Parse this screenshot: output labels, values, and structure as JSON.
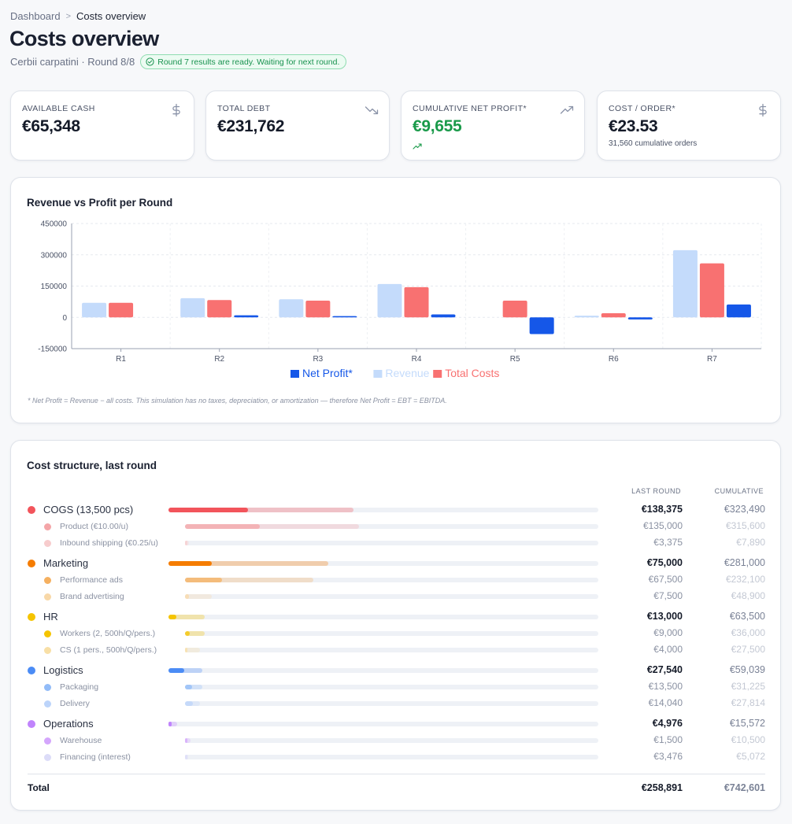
{
  "breadcrumb": {
    "root": "Dashboard",
    "separator": ">",
    "current": "Costs overview"
  },
  "page": {
    "title": "Costs overview",
    "subtitle": "Cerbii carpatini · Round 8/8",
    "status": "Round 7 results are ready. Waiting for next round."
  },
  "kpis": [
    {
      "label": "AVAILABLE CASH",
      "value": "€65,348",
      "note": "",
      "icon": "dollar-icon"
    },
    {
      "label": "TOTAL DEBT",
      "value": "€231,762",
      "note": "",
      "icon": "trend-down-icon"
    },
    {
      "label": "CUMULATIVE NET PROFIT*",
      "value": "€9,655",
      "note": "",
      "icon": "trend-up-icon"
    },
    {
      "label": "COST / ORDER*",
      "value": "€23.53",
      "note": "31,560 cumulative orders",
      "icon": "dollar-icon"
    }
  ],
  "colors": {
    "net_profit": "#1557e8",
    "revenue": "#c4dbfb",
    "total_costs": "#f87171",
    "cogs": "#f2545b",
    "marketing": "#f57c00",
    "hr": "#f5c400",
    "logistics": "#4b8cf5",
    "operations": "#c084fc",
    "positive": "#1a9a4a"
  },
  "chart": {
    "title": "Revenue vs Profit per Round",
    "note": "* Net Profit = Revenue − all costs. This simulation has no taxes, depreciation, or amortization — therefore Net Profit = EBT = EBITDA."
  },
  "chart_data": {
    "type": "bar",
    "categories": [
      "R1",
      "R2",
      "R3",
      "R4",
      "R5",
      "R6",
      "R7"
    ],
    "series": [
      {
        "name": "Net Profit*",
        "values": [
          0,
          10000,
          6000,
          14000,
          -80000,
          -10000,
          62000
        ]
      },
      {
        "name": "Revenue",
        "values": [
          70000,
          92000,
          87000,
          160000,
          0,
          8000,
          322000
        ]
      },
      {
        "name": "Total Costs",
        "values": [
          70000,
          83000,
          80000,
          145000,
          80000,
          20000,
          258891
        ]
      }
    ],
    "yticks": [
      450000,
      300000,
      150000,
      0,
      -150000
    ],
    "ylim": [
      -150000,
      450000
    ],
    "grid": true,
    "legend_position": "bottom"
  },
  "costs": {
    "title": "Cost structure, last round",
    "col_last": "LAST ROUND",
    "col_cum": "CUMULATIVE",
    "groups": [
      {
        "label": "COGS (13,500 pcs)",
        "color": "#f2545b",
        "last": "€138,375",
        "cum": "€323,490",
        "last_share": 0.185,
        "cum_share": 0.43,
        "items": [
          {
            "label": "Product (€10.00/u)",
            "color": "#f4a5a8",
            "last": "€135,000",
            "cum": "€315,600",
            "last_share": 0.18,
            "cum_share": 0.42
          },
          {
            "label": "Inbound shipping (€0.25/u)",
            "color": "#f7cccd",
            "last": "€3,375",
            "cum": "€7,890",
            "last_share": 0.005,
            "cum_share": 0.01
          }
        ]
      },
      {
        "label": "Marketing",
        "color": "#f57c00",
        "last": "€75,000",
        "cum": "€281,000",
        "last_share": 0.1,
        "cum_share": 0.372,
        "items": [
          {
            "label": "Performance ads",
            "color": "#f5b060",
            "last": "€67,500",
            "cum": "€232,100",
            "last_share": 0.09,
            "cum_share": 0.31
          },
          {
            "label": "Brand advertising",
            "color": "#f8d8a8",
            "last": "€7,500",
            "cum": "€48,900",
            "last_share": 0.01,
            "cum_share": 0.065
          }
        ]
      },
      {
        "label": "HR",
        "color": "#f5c400",
        "last": "€13,000",
        "cum": "€63,500",
        "last_share": 0.018,
        "cum_share": 0.085,
        "items": [
          {
            "label": "Workers (2, 500h/Q/pers.)",
            "color": "#f5c400",
            "last": "€9,000",
            "cum": "€36,000",
            "last_share": 0.012,
            "cum_share": 0.048
          },
          {
            "label": "CS (1 pers., 500h/Q/pers.)",
            "color": "#f8dfa6",
            "last": "€4,000",
            "cum": "€27,500",
            "last_share": 0.005,
            "cum_share": 0.036
          }
        ]
      },
      {
        "label": "Logistics",
        "color": "#4b8cf5",
        "last": "€27,540",
        "cum": "€59,039",
        "last_share": 0.037,
        "cum_share": 0.078,
        "items": [
          {
            "label": "Packaging",
            "color": "#92bcf8",
            "last": "€13,500",
            "cum": "€31,225",
            "last_share": 0.018,
            "cum_share": 0.042
          },
          {
            "label": "Delivery",
            "color": "#bcd4fa",
            "last": "€14,040",
            "cum": "€27,814",
            "last_share": 0.019,
            "cum_share": 0.037
          }
        ]
      },
      {
        "label": "Operations",
        "color": "#c084fc",
        "last": "€4,976",
        "cum": "€15,572",
        "last_share": 0.007,
        "cum_share": 0.021,
        "items": [
          {
            "label": "Warehouse",
            "color": "#d4a6fc",
            "last": "€1,500",
            "cum": "€10,500",
            "last_share": 0.002,
            "cum_share": 0.014
          },
          {
            "label": "Financing (interest)",
            "color": "#dcdcf8",
            "last": "€3,476",
            "cum": "€5,072",
            "last_share": 0.002,
            "cum_share": 0.006
          }
        ]
      }
    ],
    "total": {
      "label": "Total",
      "last": "€258,891",
      "cum": "€742,601"
    }
  }
}
